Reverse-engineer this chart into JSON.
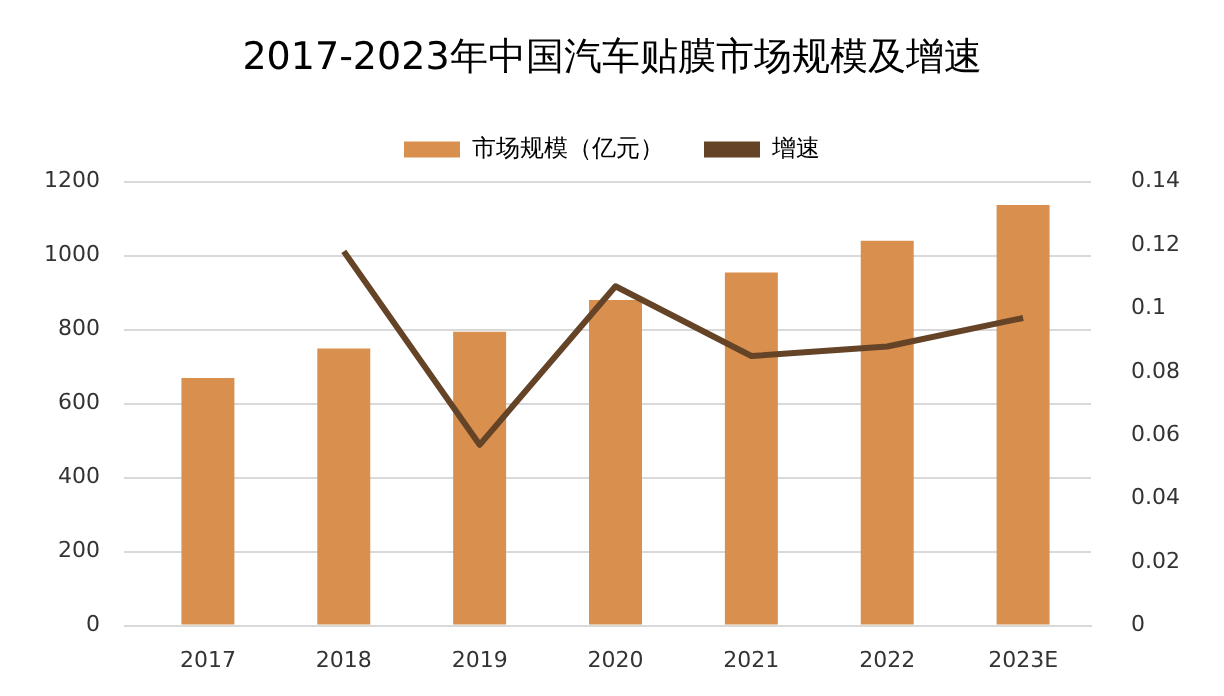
{
  "chart_data": {
    "type": "bar",
    "title": "2017-2023年中国汽车贴膜市场规模及增速",
    "categories": [
      "2017",
      "2018",
      "2019",
      "2020",
      "2021",
      "2022",
      "2023E"
    ],
    "series": [
      {
        "name": "市场规模（亿元）",
        "color": "#d9904f",
        "values": [
          669,
          749,
          794,
          880,
          954,
          1040,
          1137
        ]
      },
      {
        "name": "增速",
        "type": "line",
        "axis": "y2",
        "color": "#654327",
        "values": [
          null,
          0.118,
          0.057,
          0.107,
          0.085,
          0.088,
          0.097
        ]
      }
    ],
    "ylim": [
      0,
      1200
    ],
    "yticks": [
      0,
      200,
      400,
      600,
      800,
      1000,
      1200
    ],
    "y2lim": [
      0,
      0.14
    ],
    "y2ticks": [
      0,
      0.02,
      0.04,
      0.06,
      0.08,
      0.1,
      0.12,
      0.14
    ],
    "grid": "y",
    "legend": "top",
    "marker": "none"
  }
}
